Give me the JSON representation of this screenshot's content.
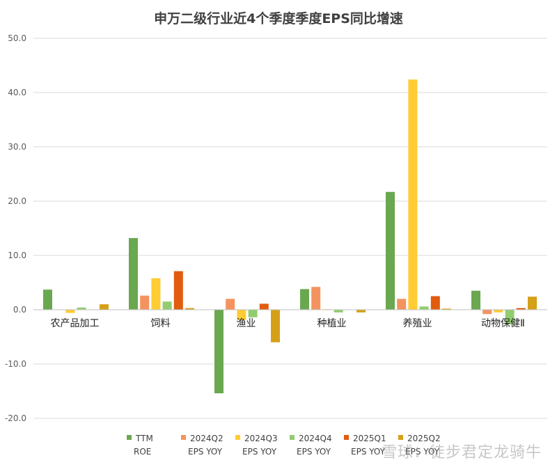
{
  "chart_data": {
    "type": "bar",
    "title": "申万二级行业近4个季度季度EPS同比增速",
    "categories": [
      "农产品加工",
      "饲料",
      "渔业",
      "种植业",
      "养殖业",
      "动物保健Ⅱ"
    ],
    "y_ticks": [
      "50.0",
      "40.0",
      "30.0",
      "20.0",
      "10.0",
      "0.0",
      "-10.0",
      "-20.0"
    ],
    "ylim": [
      -20,
      50
    ],
    "grid": true,
    "legend_position": "bottom",
    "series": [
      {
        "name": "TTM ROE",
        "label_lines": [
          "TTM",
          "ROE"
        ],
        "color": "#6aa84f",
        "values": [
          3.7,
          13.2,
          -15.4,
          3.8,
          21.7,
          3.5
        ]
      },
      {
        "name": "2024Q2 EPS YOY",
        "label_lines": [
          "2024Q2",
          "EPS YOY"
        ],
        "color": "#f4935f",
        "values": [
          0.0,
          2.6,
          2.0,
          4.2,
          2.0,
          -0.8
        ]
      },
      {
        "name": "2024Q3 EPS YOY",
        "label_lines": [
          "2024Q3",
          "EPS YOY"
        ],
        "color": "#ffcc33",
        "values": [
          -0.6,
          5.8,
          -1.9,
          0.1,
          42.4,
          -0.5
        ]
      },
      {
        "name": "2024Q4 EPS YOY",
        "label_lines": [
          "2024Q4",
          "EPS YOY"
        ],
        "color": "#92cc70",
        "values": [
          0.4,
          1.5,
          -1.4,
          -0.5,
          0.6,
          -2.7
        ]
      },
      {
        "name": "2025Q1 EPS YOY",
        "label_lines": [
          "2025Q1",
          "EPS YOY"
        ],
        "color": "#e15c0f",
        "values": [
          0.0,
          7.1,
          1.1,
          0.0,
          2.5,
          0.3
        ]
      },
      {
        "name": "2025Q2 EPS YOY",
        "label_lines": [
          "2025Q2",
          "EPS YOY"
        ],
        "color": "#d4a017",
        "values": [
          1.0,
          0.3,
          -6.0,
          -0.5,
          0.2,
          2.4
        ]
      }
    ]
  },
  "watermark": "雪球：徒步君定龙骑牛"
}
